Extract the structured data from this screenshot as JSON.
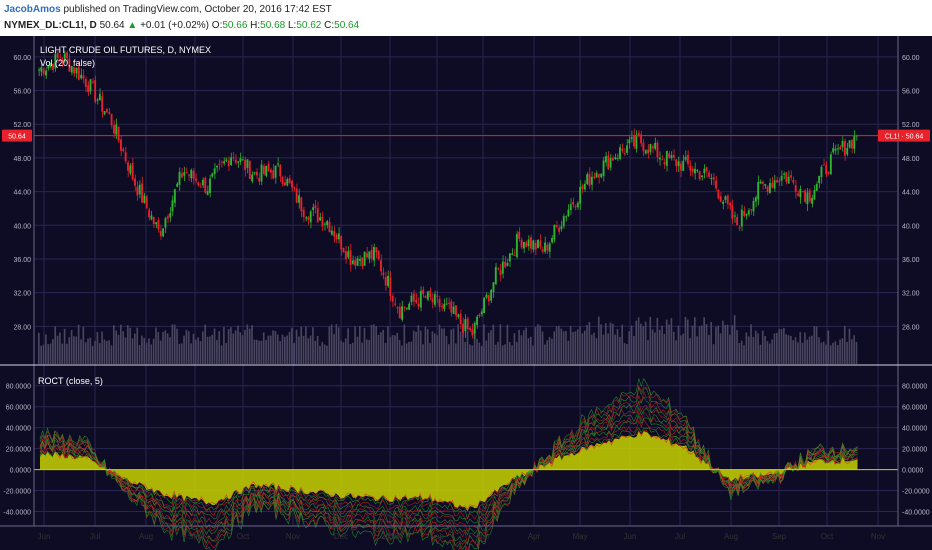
{
  "header": {
    "author": "JacobAmos",
    "published_text": "published on TradingView.com, October 20, 2016 17:42 EST",
    "symbol": "NYMEX_DL:CL1!, D",
    "last": "50.64",
    "change": "+0.01 (+0.02%)",
    "o_label": "O:",
    "o": "50.66",
    "h_label": "H:",
    "h": "50.68",
    "l_label": "L:",
    "l": "50.62",
    "c_label": "C:",
    "c": "50.64",
    "up_arrow_icon": "triangle-up-icon"
  },
  "colors": {
    "background": "#0e0b24",
    "grid": "#2a2452",
    "axis_text": "#b9b7c9",
    "up_candle": "#2fb52f",
    "down_candle": "#e8212b",
    "price_line": "#e8212b",
    "volume": "#4a4560",
    "roc_fill": "#c8d400",
    "roc_pos_line": "#22a52a",
    "roc_neg_line": "#e01e1e"
  },
  "chart_data": [
    {
      "type": "candlestick",
      "title": "LIGHT CRUDE OIL FUTURES, D, NYMEX",
      "subtitle": "Vol (20, false)",
      "ylabel": "",
      "ylim": [
        24,
        62
      ],
      "yticks": [
        "60.00",
        "56.00",
        "52.00",
        "48.00",
        "44.00",
        "40.00",
        "36.00",
        "32.00",
        "28.00"
      ],
      "xticks": [
        "Jun",
        "Jul",
        "Aug",
        "Sep",
        "Oct",
        "Nov",
        "Dec",
        "2016",
        "Feb",
        "Mar",
        "Apr",
        "May",
        "Jun",
        "Jul",
        "Aug",
        "Sep",
        "Oct",
        "Nov"
      ],
      "last_price_label": "50.64",
      "last_price_tag": "CL1! · 50.64",
      "last_price": 50.64,
      "approx_close_path": [
        {
          "x": "Jun",
          "y": 58.5
        },
        {
          "x": "Jun-mid",
          "y": 60.0
        },
        {
          "x": "Jul-early",
          "y": 57.0
        },
        {
          "x": "Jul",
          "y": 52.5
        },
        {
          "x": "Aug",
          "y": 45.0
        },
        {
          "x": "Aug-late",
          "y": 39.0
        },
        {
          "x": "Sep",
          "y": 46.5
        },
        {
          "x": "Sep-mid",
          "y": 44.5
        },
        {
          "x": "Oct",
          "y": 48.5
        },
        {
          "x": "Oct-mid",
          "y": 46.0
        },
        {
          "x": "Nov",
          "y": 46.5
        },
        {
          "x": "Nov-mid",
          "y": 42.0
        },
        {
          "x": "Dec",
          "y": 40.5
        },
        {
          "x": "Dec-mid",
          "y": 36.0
        },
        {
          "x": "2016",
          "y": 36.5
        },
        {
          "x": "Jan-mid",
          "y": 30.0
        },
        {
          "x": "Jan-late",
          "y": 31.5
        },
        {
          "x": "Feb",
          "y": 30.0
        },
        {
          "x": "Feb-mid",
          "y": 27.0
        },
        {
          "x": "Mar",
          "y": 34.0
        },
        {
          "x": "Mar-mid",
          "y": 38.5
        },
        {
          "x": "Apr",
          "y": 37.0
        },
        {
          "x": "Apr-mid",
          "y": 42.0
        },
        {
          "x": "May",
          "y": 46.0
        },
        {
          "x": "May-mid",
          "y": 48.5
        },
        {
          "x": "Jun",
          "y": 50.0
        },
        {
          "x": "Jun-mid",
          "y": 48.0
        },
        {
          "x": "Jul",
          "y": 47.0
        },
        {
          "x": "Jul-mid",
          "y": 45.5
        },
        {
          "x": "Aug",
          "y": 40.0
        },
        {
          "x": "Aug-mid",
          "y": 44.5
        },
        {
          "x": "Sep",
          "y": 46.0
        },
        {
          "x": "Sep-mid",
          "y": 43.5
        },
        {
          "x": "Oct",
          "y": 48.0
        },
        {
          "x": "Oct-mid",
          "y": 50.6
        }
      ]
    },
    {
      "type": "area",
      "title": "ROCT (close, 5)",
      "ylim": [
        -50,
        95
      ],
      "yticks": [
        "80.0000",
        "60.0000",
        "40.0000",
        "20.0000",
        "0.0000",
        "-20.0000",
        "-40.0000"
      ],
      "approx_roc_path": [
        {
          "x": "Jun",
          "y": 15
        },
        {
          "x": "Jun-mid",
          "y": 12
        },
        {
          "x": "Jul",
          "y": -10
        },
        {
          "x": "Aug",
          "y": -25
        },
        {
          "x": "Aug-late",
          "y": -32
        },
        {
          "x": "Sep",
          "y": -15
        },
        {
          "x": "Oct",
          "y": -20
        },
        {
          "x": "Nov",
          "y": -25
        },
        {
          "x": "Dec",
          "y": -28
        },
        {
          "x": "2016",
          "y": -27
        },
        {
          "x": "Feb",
          "y": -38
        },
        {
          "x": "Mar",
          "y": -10
        },
        {
          "x": "Apr",
          "y": 10
        },
        {
          "x": "May",
          "y": 25
        },
        {
          "x": "Jun",
          "y": 35
        },
        {
          "x": "Jul",
          "y": 22
        },
        {
          "x": "Aug",
          "y": -10
        },
        {
          "x": "Sep",
          "y": -5
        },
        {
          "x": "Oct",
          "y": 8
        },
        {
          "x": "Oct-mid",
          "y": 10
        }
      ]
    }
  ]
}
